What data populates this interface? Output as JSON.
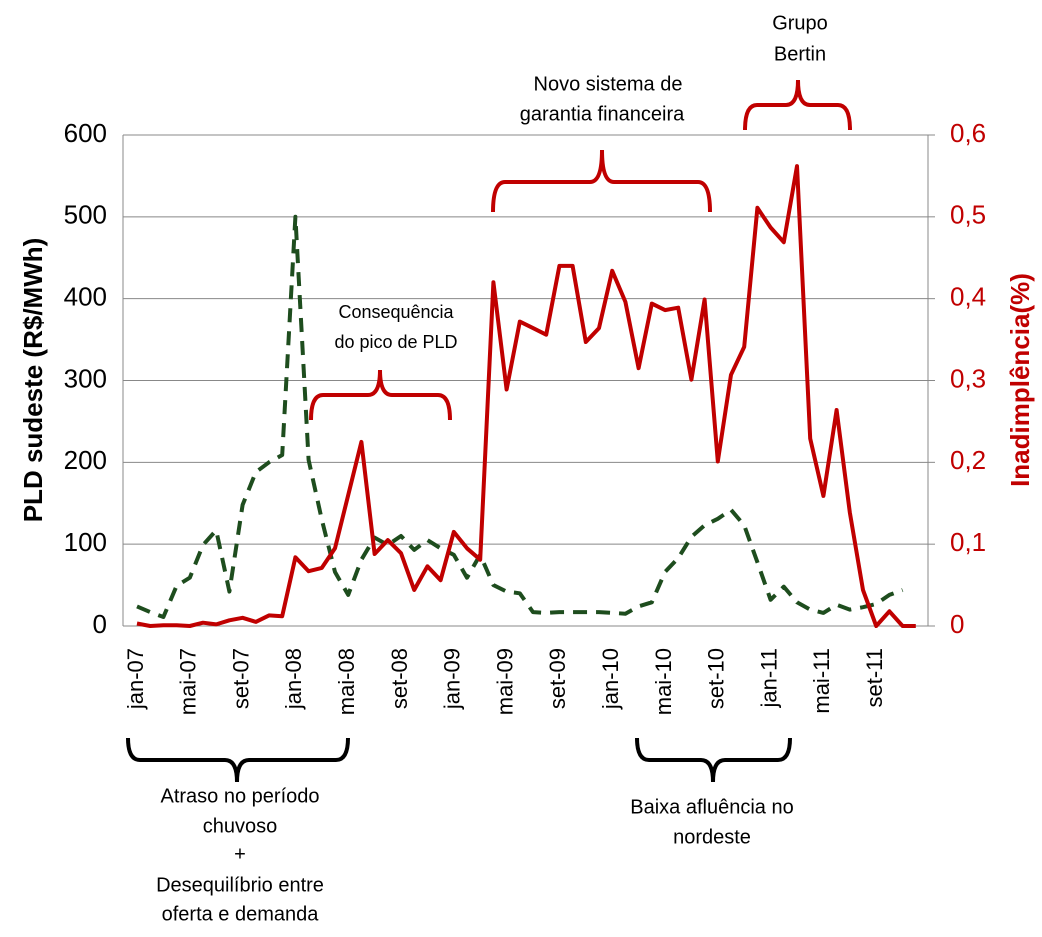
{
  "chart_data": {
    "type": "line",
    "y_label": "PLD sudeste (R$/MWh)",
    "y2_label": "Inadimplência(%)",
    "categories": [
      "jan-07",
      null,
      null,
      null,
      "mai-07",
      null,
      null,
      null,
      "set-07",
      null,
      null,
      null,
      "jan-08",
      null,
      null,
      null,
      "mai-08",
      null,
      null,
      null,
      "set-08",
      null,
      null,
      null,
      "jan-09",
      null,
      null,
      null,
      "mai-09",
      null,
      null,
      null,
      "set-09",
      null,
      null,
      null,
      "jan-10",
      null,
      null,
      null,
      "mai-10",
      null,
      null,
      null,
      "set-10",
      null,
      null,
      null,
      "jan-11",
      null,
      null,
      null,
      "mai-11",
      null,
      null,
      null,
      "set-11",
      null,
      null,
      null
    ],
    "series": [
      {
        "color": "#1e4d1e",
        "dashed": true,
        "values": [
          24,
          17,
          11,
          49,
          59,
          99,
          117,
          42,
          148,
          188,
          200,
          209,
          500,
          203,
          130,
          66,
          38,
          81,
          108,
          99,
          110,
          93,
          105,
          95,
          87,
          59,
          87,
          50,
          42,
          40,
          17,
          16,
          17,
          17,
          17,
          17,
          16,
          15,
          24,
          29,
          66,
          83,
          109,
          123,
          131,
          142,
          123,
          78,
          32,
          48,
          29,
          20,
          16,
          26,
          20,
          23,
          27,
          38,
          44,
          null
        ]
      },
      {
        "color": "#c00000",
        "axis": "y2",
        "values": [
          0.003,
          0,
          0.001,
          0.001,
          0,
          0.004,
          0.002,
          0.007,
          0.01,
          0.005,
          0.013,
          0.012,
          0.084,
          0.067,
          0.071,
          0.095,
          0.16,
          0.225,
          0.088,
          0.105,
          0.089,
          0.044,
          0.073,
          0.056,
          0.115,
          0.095,
          0.081,
          0.42,
          0.289,
          0.372,
          0.364,
          0.356,
          0.44,
          0.44,
          0.347,
          0.364,
          0.434,
          0.396,
          0.315,
          0.394,
          0.386,
          0.389,
          0.301,
          0.399,
          0.201,
          0.307,
          0.341,
          0.511,
          0.487,
          0.469,
          0.562,
          0.229,
          0.159,
          0.264,
          0.139,
          0.044,
          0,
          0.018,
          0,
          0
        ]
      }
    ],
    "ylim": [
      0,
      600
    ],
    "yticks": [
      0,
      100,
      200,
      300,
      400,
      500,
      600
    ],
    "y2lim": [
      0,
      0.6
    ],
    "y2ticks": [
      {
        "value": 0,
        "label": "0"
      },
      {
        "value": 0.1,
        "label": "0,1"
      },
      {
        "value": 0.2,
        "label": "0,2"
      },
      {
        "value": 0.3,
        "label": "0,3"
      },
      {
        "value": 0.4,
        "label": "0,4"
      },
      {
        "value": 0.5,
        "label": "0,5"
      },
      {
        "value": 0.6,
        "label": "0,6"
      }
    ],
    "grid": true,
    "annotations": [
      {
        "lines": [
          "Grupo",
          "Bertin"
        ]
      },
      {
        "lines": [
          "Novo sistema de",
          "garantia financeira"
        ]
      },
      {
        "lines": [
          "Consequência",
          "do pico de PLD"
        ]
      },
      {
        "lines": [
          "Atraso no período",
          "chuvoso",
          "+",
          "Desequilíbrio entre",
          "oferta e demanda"
        ]
      },
      {
        "lines": [
          "Baixa afluência no",
          "nordeste"
        ]
      }
    ]
  }
}
